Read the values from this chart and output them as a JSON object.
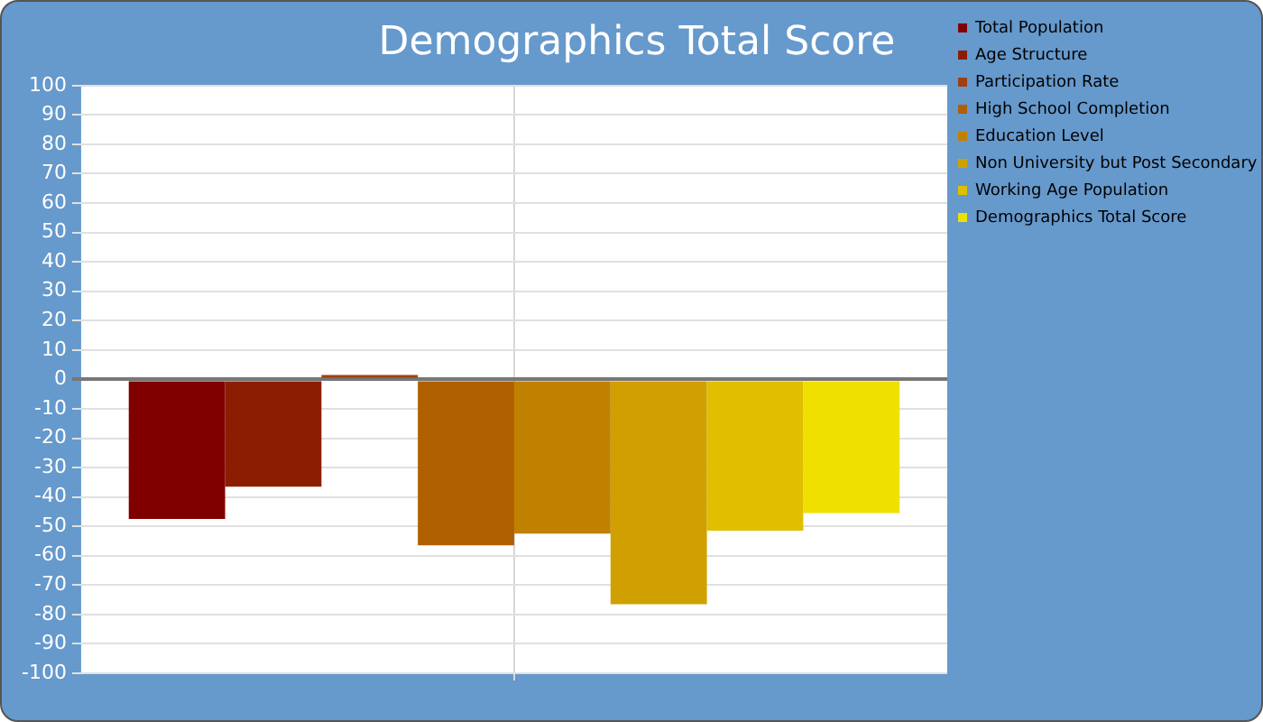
{
  "chart_data": {
    "type": "bar",
    "title": "Demographics Total Score",
    "categories": [
      null
    ],
    "series": [
      {
        "name": "Total Population",
        "color": "#800000",
        "values": [
          -47.5
        ]
      },
      {
        "name": "Age Structure",
        "color": "#8b1e00",
        "values": [
          -36.5
        ]
      },
      {
        "name": "Participation Rate",
        "color": "#a04010",
        "values": [
          1.5
        ]
      },
      {
        "name": "High School Completion",
        "color": "#b06000",
        "values": [
          -56.5
        ]
      },
      {
        "name": "Education Level",
        "color": "#c08000",
        "values": [
          -52.5
        ]
      },
      {
        "name": "Non University but Post Secondary",
        "color": "#d0a000",
        "values": [
          -76.5
        ]
      },
      {
        "name": "Working Age Population",
        "color": "#e0bf00",
        "values": [
          -51.5
        ]
      },
      {
        "name": "Demographics Total Score",
        "color": "#f0e000",
        "values": [
          -45.5
        ]
      }
    ],
    "ylim": [
      -100,
      100
    ],
    "yticks": [
      -100,
      -90,
      -80,
      -70,
      -60,
      -50,
      -40,
      -30,
      -20,
      -10,
      0,
      10,
      20,
      30,
      40,
      50,
      60,
      70,
      80,
      90,
      100
    ],
    "grid": true,
    "legend": "right",
    "tick_labels": "y"
  }
}
